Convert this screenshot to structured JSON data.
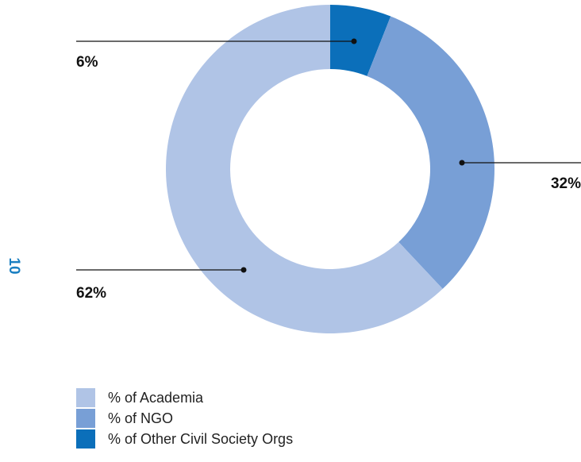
{
  "page_number": "10",
  "chart_data": {
    "type": "pie",
    "variant": "donut",
    "title": "",
    "legend_position": "bottom-left",
    "slices": [
      {
        "name": "% of Other Civil Society Orgs",
        "value": 6,
        "label": "6%",
        "color": "#0b6fba"
      },
      {
        "name": "% of NGO",
        "value": 32,
        "label": "32%",
        "color": "#789fd6"
      },
      {
        "name": "% of Academia",
        "value": 62,
        "label": "62%",
        "color": "#b0c4e6"
      }
    ],
    "legend": [
      {
        "label": "% of Academia",
        "color": "#b0c4e6"
      },
      {
        "label": "% of NGO",
        "color": "#789fd6"
      },
      {
        "label": "% of Other Civil Society Orgs",
        "color": "#0b6fba"
      }
    ]
  }
}
